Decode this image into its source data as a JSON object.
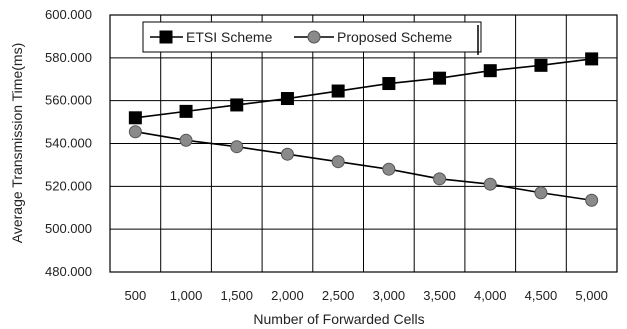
{
  "chart_data": {
    "type": "line",
    "title": "",
    "xlabel": "Number of Forwarded Cells",
    "ylabel": "Average Transmission Time(ms)",
    "categories": [
      "500",
      "1,000",
      "1,500",
      "2,000",
      "2,500",
      "3,000",
      "3,500",
      "4,000",
      "4,500",
      "5,000"
    ],
    "ylim": [
      480,
      600
    ],
    "yticks": [
      "480.000",
      "500.000",
      "520.000",
      "540.000",
      "560.000",
      "580.000",
      "600.000"
    ],
    "ytick_values": [
      480,
      500,
      520,
      540,
      560,
      580,
      600
    ],
    "grid": true,
    "legend_position": "top-left",
    "series": [
      {
        "name": "ETSI Scheme",
        "marker": "square",
        "color": "#000000",
        "values": [
          552,
          555,
          558,
          561,
          564.5,
          568,
          570.5,
          574,
          576.5,
          579.5
        ]
      },
      {
        "name": "Proposed Scheme",
        "marker": "circle",
        "color": "#8a8a8a",
        "values": [
          545.5,
          541.5,
          538.5,
          535,
          531.5,
          528,
          523.5,
          521,
          517,
          513.5
        ]
      }
    ]
  }
}
